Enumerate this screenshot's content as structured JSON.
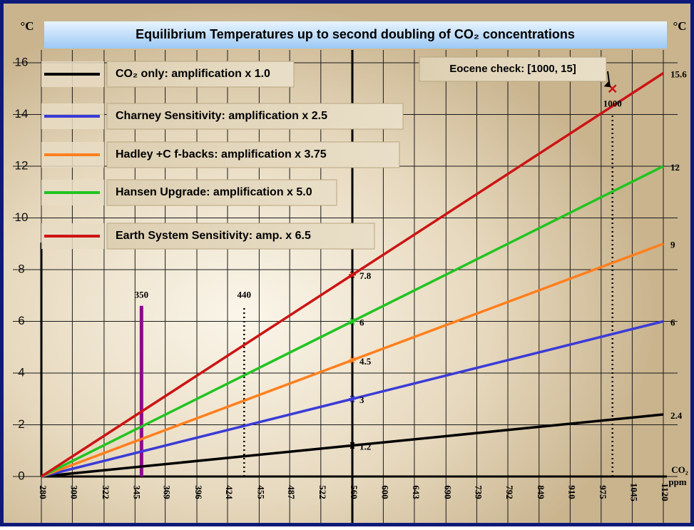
{
  "chart_data": {
    "type": "line",
    "title": "Equilibrium Temperatures up to second doubling of CO₂ concentrations",
    "ylabel_left": "°C",
    "ylabel_right": "°C",
    "xlabel_lines": [
      "CO₂",
      "ppm"
    ],
    "x": [
      280,
      560,
      1120
    ],
    "xscale": "log",
    "xlim": [
      280,
      1120
    ],
    "xticks": [
      280,
      300,
      322,
      345,
      369,
      396,
      424,
      455,
      487,
      522,
      560,
      600,
      643,
      690,
      739,
      792,
      849,
      910,
      975,
      1045,
      1120
    ],
    "ylim": [
      0,
      16
    ],
    "yticks": [
      0,
      2,
      4,
      6,
      8,
      10,
      12,
      14,
      16
    ],
    "grid": true,
    "series": [
      {
        "name": "CO₂ only: amplification x 1.0",
        "color": "#000000",
        "values": [
          0,
          1.2,
          2.4
        ]
      },
      {
        "name": "Charney Sensitivity: amplification x 2.5",
        "color": "#3b3bd6",
        "values": [
          0,
          3,
          6
        ]
      },
      {
        "name": "Hadley +C f-backs: amplification x 3.75",
        "color": "#ff7f1e",
        "values": [
          0,
          4.5,
          9
        ]
      },
      {
        "name": "Hansen Upgrade: amplification x 5.0",
        "color": "#22c422",
        "values": [
          0,
          6,
          12
        ]
      },
      {
        "name": "Earth System Sensitivity: amp. x 6.5",
        "color": "#cc1414",
        "values": [
          0,
          7.8,
          15.6
        ]
      }
    ],
    "vlines": [
      {
        "x": 350,
        "top": 6.6,
        "color": "#8b0a8b",
        "style": "solid"
      },
      {
        "x": 440,
        "top": 6.6,
        "color": "#000000",
        "style": "dotted"
      },
      {
        "x": 1000,
        "top": 14,
        "color": "#000000",
        "style": "dotted"
      }
    ],
    "points": [
      {
        "x": 1000,
        "y": 15,
        "label": "Eocene check: [1000, 15]",
        "color": "#cc1414"
      }
    ]
  }
}
